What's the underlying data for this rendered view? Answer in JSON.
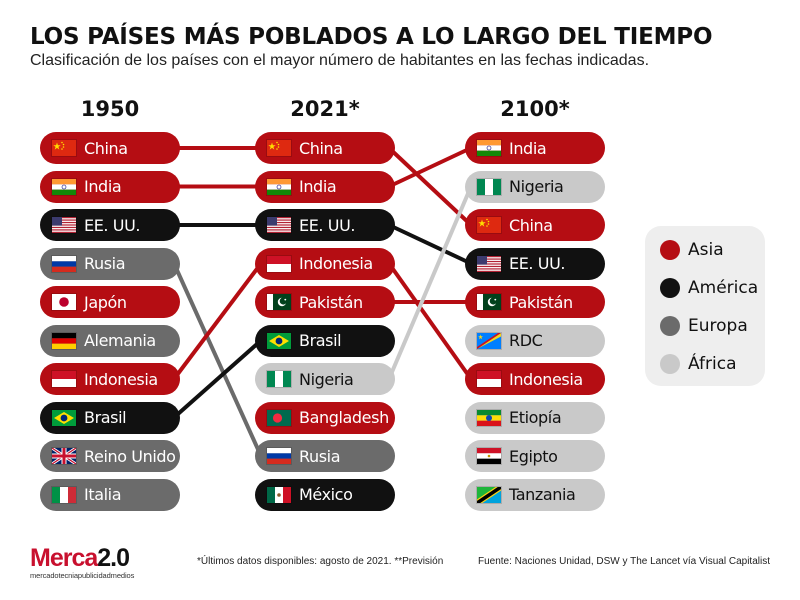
{
  "title": "LOS PAÍSES MÁS POBLADOS A LO LARGO DEL TIEMPO",
  "subtitle": "Clasificación de los países con el mayor número de habitantes en las fechas indicadas.",
  "colors": {
    "Asia": "#b50d13",
    "América": "#111111",
    "Europa": "#6b6b6b",
    "África": "#c9c9c9"
  },
  "chart_data": {
    "type": "table",
    "columns": [
      "1950",
      "2021*",
      "2100*"
    ],
    "rankings": [
      [
        {
          "country": "China",
          "region": "Asia",
          "flag": "china-flag-icon"
        },
        {
          "country": "India",
          "region": "Asia",
          "flag": "india-flag-icon"
        },
        {
          "country": "EE. UU.",
          "region": "América",
          "flag": "usa-flag-icon"
        },
        {
          "country": "Rusia",
          "region": "Europa",
          "flag": "russia-flag-icon"
        },
        {
          "country": "Japón",
          "region": "Asia",
          "flag": "japan-flag-icon"
        },
        {
          "country": "Alemania",
          "region": "Europa",
          "flag": "germany-flag-icon"
        },
        {
          "country": "Indonesia",
          "region": "Asia",
          "flag": "indonesia-flag-icon"
        },
        {
          "country": "Brasil",
          "region": "América",
          "flag": "brazil-flag-icon"
        },
        {
          "country": "Reino Unido",
          "region": "Europa",
          "flag": "uk-flag-icon"
        },
        {
          "country": "Italia",
          "region": "Europa",
          "flag": "italy-flag-icon"
        }
      ],
      [
        {
          "country": "China",
          "region": "Asia",
          "flag": "china-flag-icon"
        },
        {
          "country": "India",
          "region": "Asia",
          "flag": "india-flag-icon"
        },
        {
          "country": "EE. UU.",
          "region": "América",
          "flag": "usa-flag-icon"
        },
        {
          "country": "Indonesia",
          "region": "Asia",
          "flag": "indonesia-flag-icon"
        },
        {
          "country": "Pakistán",
          "region": "Asia",
          "flag": "pakistan-flag-icon"
        },
        {
          "country": "Brasil",
          "region": "América",
          "flag": "brazil-flag-icon"
        },
        {
          "country": "Nigeria",
          "region": "África",
          "flag": "nigeria-flag-icon"
        },
        {
          "country": "Bangladesh",
          "region": "Asia",
          "flag": "bangladesh-flag-icon"
        },
        {
          "country": "Rusia",
          "region": "Europa",
          "flag": "russia-flag-icon"
        },
        {
          "country": "México",
          "region": "América",
          "flag": "mexico-flag-icon"
        }
      ],
      [
        {
          "country": "India",
          "region": "Asia",
          "flag": "india-flag-icon"
        },
        {
          "country": "Nigeria",
          "region": "África",
          "flag": "nigeria-flag-icon"
        },
        {
          "country": "China",
          "region": "Asia",
          "flag": "china-flag-icon"
        },
        {
          "country": "EE. UU.",
          "region": "América",
          "flag": "usa-flag-icon"
        },
        {
          "country": "Pakistán",
          "region": "Asia",
          "flag": "pakistan-flag-icon"
        },
        {
          "country": "RDC",
          "region": "África",
          "flag": "drc-flag-icon"
        },
        {
          "country": "Indonesia",
          "region": "Asia",
          "flag": "indonesia-flag-icon"
        },
        {
          "country": "Etiopía",
          "region": "África",
          "flag": "ethiopia-flag-icon"
        },
        {
          "country": "Egipto",
          "region": "África",
          "flag": "egypt-flag-icon"
        },
        {
          "country": "Tanzania",
          "region": "África",
          "flag": "tanzania-flag-icon"
        }
      ]
    ],
    "legend": [
      "Asia",
      "América",
      "Europa",
      "África"
    ],
    "legend_position": "right"
  },
  "footer": {
    "logo_main": "Merca",
    "logo_version": "2.0",
    "logo_sub": "mercadotecniapublicidadmedios",
    "footnote": "*Últimos datos disponibles: agosto de 2021. **Previsión",
    "source": "Fuente: Naciones Unidad, DSW y The Lancet vía Visual Capitalist"
  }
}
